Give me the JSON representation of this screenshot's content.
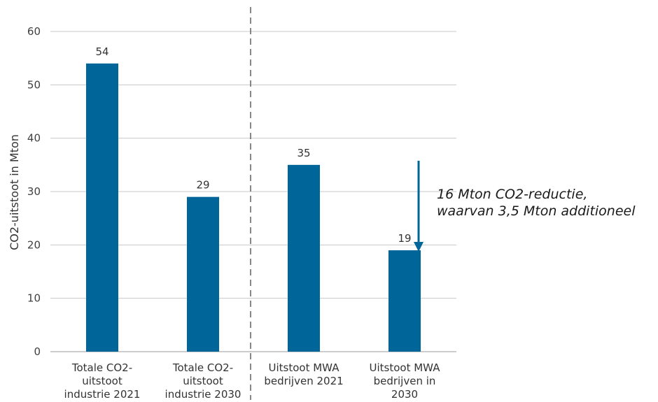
{
  "chart_data": {
    "type": "bar",
    "categories": [
      [
        "Totale CO2-",
        "uitstoot",
        "industrie 2021"
      ],
      [
        "Totale CO2-",
        "uitstoot",
        "industrie 2030"
      ],
      [
        "Uitstoot MWA",
        "bedrijven 2021"
      ],
      [
        "Uitstoot MWA",
        "bedrijven in",
        "2030"
      ]
    ],
    "values": [
      54,
      29,
      35,
      19
    ],
    "data_labels": [
      "54",
      "29",
      "35",
      "19"
    ],
    "ylabel": "CO2-uitstoot in Mton",
    "ylim": [
      0,
      60
    ],
    "yticks": [
      0,
      10,
      20,
      30,
      40,
      50,
      60
    ],
    "grid": true,
    "bar_color": "#00669a",
    "divider": "dashed vertical line between second and third category",
    "annotation": {
      "lines": [
        "16 Mton CO2-reductie,",
        "waarvan 3,5 Mton additioneel"
      ],
      "arrow_from": 35,
      "arrow_to": 19,
      "arrow_color": "#00669a"
    }
  }
}
